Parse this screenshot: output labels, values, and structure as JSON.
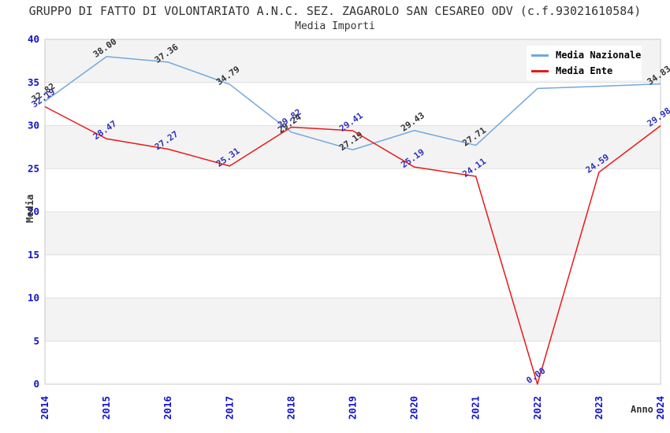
{
  "chart_data": {
    "type": "line",
    "title": "GRUPPO DI FATTO DI VOLONTARIATO A.N.C. SEZ. ZAGAROLO SAN CESAREO ODV (c.f.93021610584)",
    "subtitle": "Media Importi",
    "xlabel": "Anno",
    "ylabel": "Media",
    "categories": [
      "2014",
      "2015",
      "2016",
      "2017",
      "2018",
      "2019",
      "2020",
      "2021",
      "2022",
      "2023",
      "2024"
    ],
    "ylim": [
      0,
      40
    ],
    "ytick_step": 5,
    "yticks": [
      "0",
      "5",
      "10",
      "15",
      "20",
      "25",
      "30",
      "35",
      "40"
    ],
    "grid": true,
    "legend_position": "top-right",
    "band_color": "#f3f3f3",
    "band_alt_color": "#ffffff",
    "gridline_color": "#e0e0e0",
    "border_color": "#c8c8c8",
    "tick_label_color": "#1111cc",
    "series": [
      {
        "name": "Media Nazionale",
        "color": "#74a7dd",
        "label_color": "#333333",
        "values": [
          32.82,
          38.0,
          37.36,
          34.79,
          29.24,
          27.19,
          29.43,
          27.71,
          34.3,
          34.56,
          34.83
        ],
        "labels": [
          "32.82",
          "38.00",
          "37.36",
          "34.79",
          "29.24",
          "27.19",
          "29.43",
          "27.71",
          "",
          "",
          "34.83"
        ]
      },
      {
        "name": "Media Ente",
        "color": "#e81a1a",
        "label_color": "#3030bb",
        "values": [
          32.19,
          28.47,
          27.27,
          25.31,
          29.82,
          29.41,
          25.19,
          24.11,
          0.0,
          24.59,
          29.98
        ],
        "labels": [
          "32.19",
          "28.47",
          "27.27",
          "25.31",
          "29.82",
          "29.41",
          "25.19",
          "24.11",
          "0.00",
          "24.59",
          "29.98"
        ]
      }
    ]
  }
}
